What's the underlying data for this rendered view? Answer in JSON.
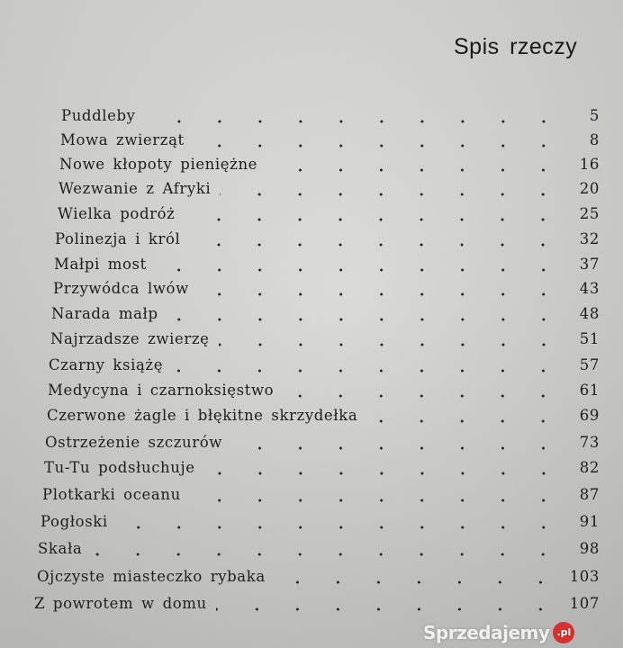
{
  "title": "Spis rzeczy",
  "entries": [
    {
      "title": "Puddleby",
      "page": "5"
    },
    {
      "title": "Mowa zwierząt",
      "page": "8"
    },
    {
      "title": "Nowe kłopoty pieniężne",
      "page": "16"
    },
    {
      "title": "Wezwanie z Afryki",
      "page": "20"
    },
    {
      "title": "Wielka podróż",
      "page": "25"
    },
    {
      "title": "Polinezja i król",
      "page": "32"
    },
    {
      "title": "Małpi most",
      "page": "37"
    },
    {
      "title": "Przywódca lwów",
      "page": "43"
    },
    {
      "title": "Narada małp",
      "page": "48"
    },
    {
      "title": "Najrzadsze zwierzę",
      "page": "51"
    },
    {
      "title": "Czarny książę",
      "page": "57"
    },
    {
      "title": "Medycyna i czarnoksięstwo",
      "page": "61"
    },
    {
      "title": "Czerwone żagle i błękitne skrzydełka",
      "page": "69"
    },
    {
      "title": "Ostrzeżenie szczurów",
      "page": "73"
    },
    {
      "title": "Tu-Tu podsłuchuje",
      "page": "82"
    },
    {
      "title": "Plotkarki oceanu",
      "page": "87"
    },
    {
      "title": "Pogłoski",
      "page": "91"
    },
    {
      "title": "Skała",
      "page": "98"
    },
    {
      "title": "Ojczyste miasteczko rybaka",
      "page": "103"
    },
    {
      "title": "Z powrotem w domu",
      "page": "107"
    }
  ],
  "watermark": {
    "text": "Sprzedajemy",
    "badge": ".pl"
  }
}
